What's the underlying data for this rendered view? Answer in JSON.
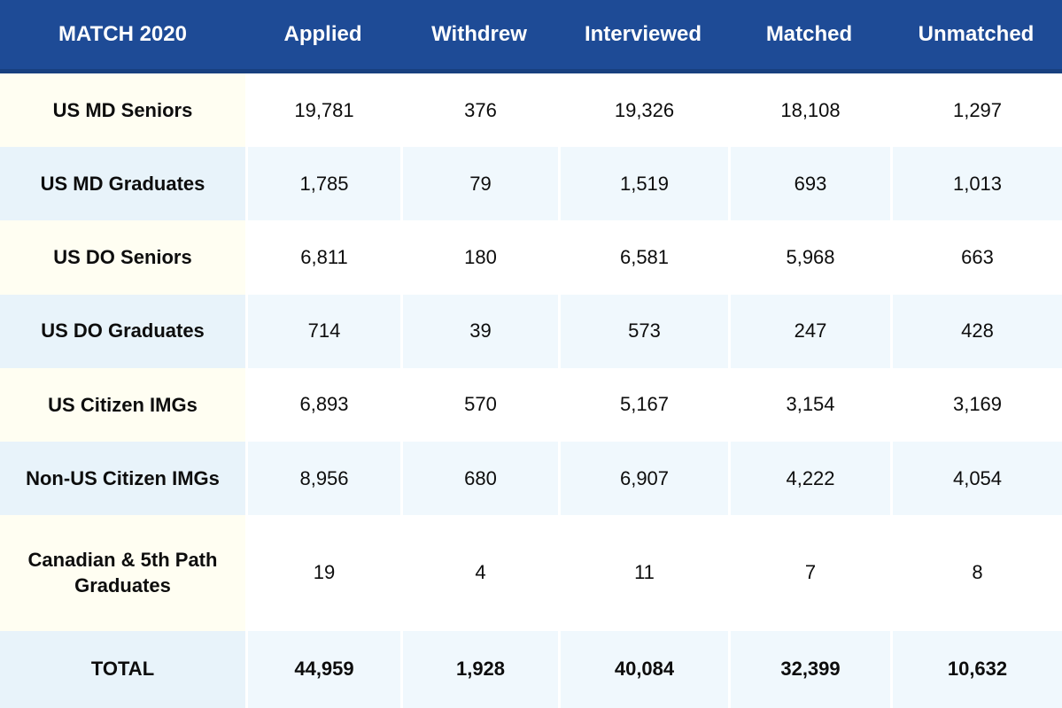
{
  "chart_data": {
    "type": "table",
    "title": "MATCH 2020",
    "columns": [
      "Applied",
      "Withdrew",
      "Interviewed",
      "Matched",
      "Unmatched"
    ],
    "rows": [
      {
        "label": "US MD Seniors",
        "values": [
          "19,781",
          "376",
          "19,326",
          "18,108",
          "1,297"
        ]
      },
      {
        "label": "US MD Graduates",
        "values": [
          "1,785",
          "79",
          "1,519",
          "693",
          "1,013"
        ]
      },
      {
        "label": "US DO Seniors",
        "values": [
          "6,811",
          "180",
          "6,581",
          "5,968",
          "663"
        ]
      },
      {
        "label": "US DO Graduates",
        "values": [
          "714",
          "39",
          "573",
          "247",
          "428"
        ]
      },
      {
        "label": "US Citizen IMGs",
        "values": [
          "6,893",
          "570",
          "5,167",
          "3,154",
          "3,169"
        ]
      },
      {
        "label": "Non-US Citizen IMGs",
        "values": [
          "8,956",
          "680",
          "6,907",
          "4,222",
          "4,054"
        ]
      },
      {
        "label": "Canadian & 5th Path Graduates",
        "values": [
          "19",
          "4",
          "11",
          "7",
          "8"
        ]
      },
      {
        "label": "TOTAL",
        "values": [
          "44,959",
          "1,928",
          "40,084",
          "32,399",
          "10,632"
        ]
      }
    ],
    "numeric_values": [
      [
        19781,
        376,
        19326,
        18108,
        1297
      ],
      [
        1785,
        79,
        1519,
        693,
        1013
      ],
      [
        6811,
        180,
        6581,
        5968,
        663
      ],
      [
        714,
        39,
        573,
        247,
        428
      ],
      [
        6893,
        570,
        5167,
        3154,
        3169
      ],
      [
        8956,
        680,
        6907,
        4222,
        4054
      ],
      [
        19,
        4,
        11,
        7,
        8
      ],
      [
        44959,
        1928,
        40084,
        32399,
        10632
      ]
    ],
    "colors": {
      "header_background": "#1e4b96",
      "header_text": "#ffffff",
      "odd_row_label_background": "#fffef2",
      "odd_row_value_background": "#ffffff",
      "even_row_label_background": "#e8f3fa",
      "even_row_value_background": "#f0f8fd",
      "cell_text": "#0d0d0d",
      "cell_separator": "#ffffff"
    }
  }
}
